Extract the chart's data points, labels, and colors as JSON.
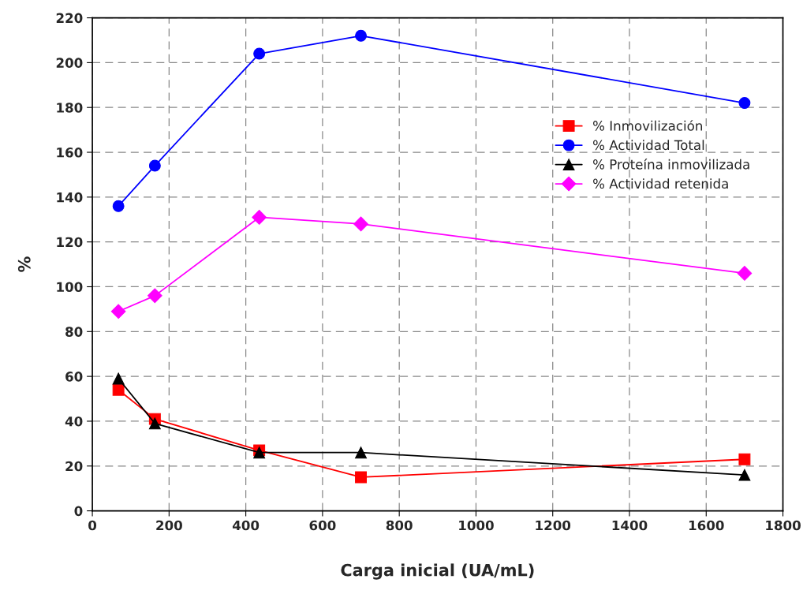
{
  "chart_data": {
    "type": "line",
    "xlabel": "Carga inicial (UA/mL)",
    "ylabel": "%",
    "x": [
      68,
      163,
      435,
      700,
      1700
    ],
    "series": [
      {
        "name": "% Inmovilización",
        "color": "#ff0000",
        "marker": "square",
        "values": [
          54,
          41,
          27,
          15,
          23
        ]
      },
      {
        "name": "% Actividad Total",
        "color": "#0000ff",
        "marker": "circle",
        "values": [
          136,
          154,
          204,
          212,
          182
        ]
      },
      {
        "name": "% Proteína inmovilizada",
        "color": "#000000",
        "marker": "triangle",
        "values": [
          59,
          39,
          26,
          26,
          16
        ]
      },
      {
        "name": "% Actividad retenida",
        "color": "#ff00ff",
        "marker": "diamond",
        "values": [
          89,
          96,
          131,
          128,
          106
        ]
      }
    ],
    "xlim": [
      0,
      1800
    ],
    "xticks": [
      0,
      200,
      400,
      600,
      800,
      1000,
      1200,
      1400,
      1600,
      1800
    ],
    "ylim": [
      0,
      220
    ],
    "yticks": [
      0,
      20,
      40,
      60,
      80,
      100,
      120,
      140,
      160,
      180,
      200,
      220
    ],
    "grid": true,
    "legend": "right",
    "line_style": "solid"
  }
}
